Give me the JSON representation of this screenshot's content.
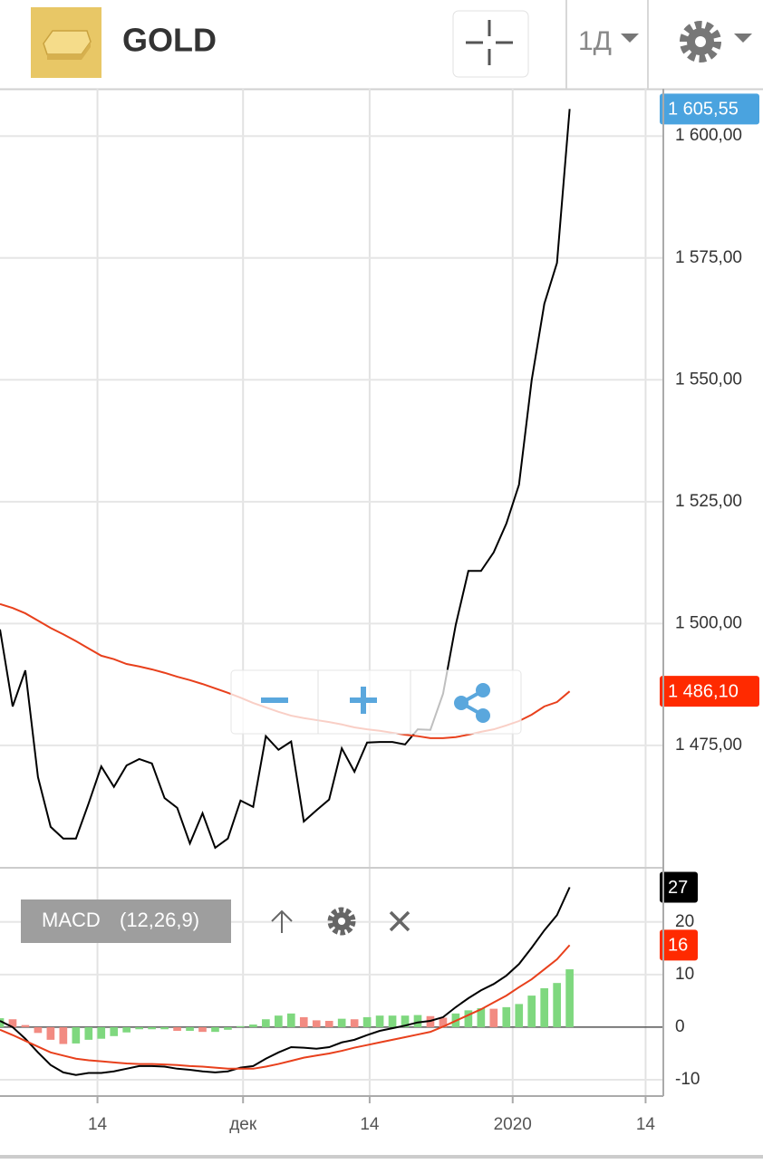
{
  "header": {
    "title": "GOLD",
    "interval": "1Д"
  },
  "chart_data": [
    {
      "type": "line",
      "x": [
        0,
        1,
        2,
        3,
        4,
        5,
        6,
        7,
        8,
        9,
        10,
        11,
        12,
        13,
        14,
        15,
        16,
        17,
        18,
        19,
        20,
        21,
        22,
        23,
        24,
        25,
        26,
        27,
        28,
        29,
        30,
        31,
        32,
        33,
        34,
        35,
        36,
        37,
        38,
        39,
        40,
        41,
        42,
        43,
        44,
        45
      ],
      "series": [
        {
          "color": "#000000",
          "label_color": "#4aa3df",
          "last_label": "1 605,55",
          "values": [
            1498.8,
            1483.0,
            1490.4,
            1468.5,
            1458.3,
            1455.9,
            1455.9,
            1463.1,
            1470.7,
            1466.5,
            1470.9,
            1472.2,
            1471.3,
            1464.2,
            1462.2,
            1454.9,
            1461.1,
            1454.0,
            1455.9,
            1463.7,
            1462.4,
            1476.9,
            1474.1,
            1475.8,
            1459.4,
            1461.7,
            1463.9,
            1474.4,
            1469.6,
            1475.6,
            1475.7,
            1475.7,
            1475.2,
            1478.3,
            1478.2,
            1485.6,
            1499.7,
            1510.8,
            1510.8,
            1514.6,
            1520.5,
            1528.5,
            1549.9,
            1565.6,
            1574.0,
            1605.55
          ]
        },
        {
          "color": "#e8401c",
          "label_color": "#ff2a00",
          "last_label": "1 486,10",
          "values": [
            1504.0,
            1503.2,
            1502.1,
            1500.6,
            1499.1,
            1497.8,
            1496.4,
            1494.9,
            1493.4,
            1492.7,
            1491.7,
            1491.2,
            1490.6,
            1489.9,
            1489.1,
            1488.4,
            1487.6,
            1486.7,
            1485.8,
            1484.8,
            1483.7,
            1482.8,
            1481.9,
            1481.1,
            1480.6,
            1480.2,
            1479.8,
            1479.3,
            1478.7,
            1478.3,
            1478.0,
            1477.6,
            1477.2,
            1476.9,
            1476.5,
            1476.5,
            1476.7,
            1477.2,
            1477.8,
            1478.3,
            1479.1,
            1480.0,
            1481.3,
            1483.0,
            1483.9,
            1486.1
          ]
        }
      ],
      "xlim": [
        0,
        52.4
      ],
      "ylim": [
        1449.9,
        1609.7
      ],
      "yticks": [
        {
          "value": 1475,
          "label": "1 475,00"
        },
        {
          "value": 1500,
          "label": "1 500,00"
        },
        {
          "value": 1525,
          "label": "1 525,00"
        },
        {
          "value": 1550,
          "label": "1 550,00"
        },
        {
          "value": 1575,
          "label": "1 575,00"
        },
        {
          "value": 1600,
          "label": "1 600,00"
        }
      ],
      "grid": true
    },
    {
      "type": "macd",
      "title": "MACD",
      "params": "(12,26,9)",
      "x": [
        0,
        1,
        2,
        3,
        4,
        5,
        6,
        7,
        8,
        9,
        10,
        11,
        12,
        13,
        14,
        15,
        16,
        17,
        18,
        19,
        20,
        21,
        22,
        23,
        24,
        25,
        26,
        27,
        28,
        29,
        30,
        31,
        32,
        33,
        34,
        35,
        36,
        37,
        38,
        39,
        40,
        41,
        42,
        43,
        44,
        45
      ],
      "series": [
        {
          "color": "#000000",
          "label_color": "#000000",
          "last_label": "27",
          "values": [
            1.2,
            0,
            -2.2,
            -4.8,
            -7.2,
            -8.6,
            -9.1,
            -8.7,
            -8.7,
            -8.4,
            -7.9,
            -7.4,
            -7.4,
            -7.5,
            -7.9,
            -8.1,
            -8.4,
            -8.6,
            -8.4,
            -7.7,
            -7.4,
            -6.0,
            -4.8,
            -3.8,
            -3.9,
            -4.1,
            -3.8,
            -2.9,
            -2.4,
            -1.5,
            -0.7,
            -0.2,
            0.3,
            0.9,
            1.2,
            1.9,
            3.8,
            5.5,
            7.0,
            8.2,
            9.8,
            12.0,
            15.1,
            18.4,
            21.3,
            26.6
          ]
        },
        {
          "color": "#e8401c",
          "label_color": "#ff2a00",
          "last_label": "16",
          "values": [
            -0.5,
            -1.5,
            -2.6,
            -3.7,
            -4.8,
            -5.4,
            -6.0,
            -6.3,
            -6.5,
            -6.7,
            -6.9,
            -7.0,
            -7.0,
            -7.1,
            -7.2,
            -7.4,
            -7.5,
            -7.7,
            -7.9,
            -7.9,
            -7.9,
            -7.5,
            -7.0,
            -6.4,
            -5.8,
            -5.4,
            -5.0,
            -4.5,
            -3.9,
            -3.4,
            -2.9,
            -2.4,
            -1.9,
            -1.4,
            -0.9,
            0.1,
            1.2,
            2.3,
            3.4,
            4.7,
            6.0,
            7.6,
            9.1,
            11.0,
            12.9,
            15.6
          ]
        }
      ],
      "histogram": {
        "up_color": "#7fd87f",
        "down_color": "#f28b82",
        "values": [
          1.7,
          1.5,
          0.4,
          -1.1,
          -2.4,
          -3.2,
          -3.1,
          -2.4,
          -2.2,
          -1.7,
          -1.0,
          -0.4,
          -0.4,
          -0.4,
          -0.7,
          -0.7,
          -0.9,
          -0.9,
          -0.5,
          0.2,
          0.5,
          1.5,
          2.2,
          2.6,
          1.9,
          1.3,
          1.2,
          1.6,
          1.5,
          1.9,
          2.2,
          2.2,
          2.2,
          2.3,
          2.1,
          1.8,
          2.6,
          3.2,
          3.6,
          3.5,
          3.8,
          4.4,
          6.0,
          7.4,
          8.4,
          11.0
        ]
      },
      "xlim": [
        0,
        52.4
      ],
      "xticks": [
        {
          "value": 7.7,
          "label": "14"
        },
        {
          "value": 19.2,
          "label": "дек"
        },
        {
          "value": 29.2,
          "label": "14"
        },
        {
          "value": 40.5,
          "label": "2020"
        },
        {
          "value": 51.0,
          "label": "14"
        }
      ],
      "ylim": [
        -13.1,
        30.3
      ],
      "yticks": [
        -10,
        0,
        10,
        20
      ],
      "grid": true
    }
  ]
}
